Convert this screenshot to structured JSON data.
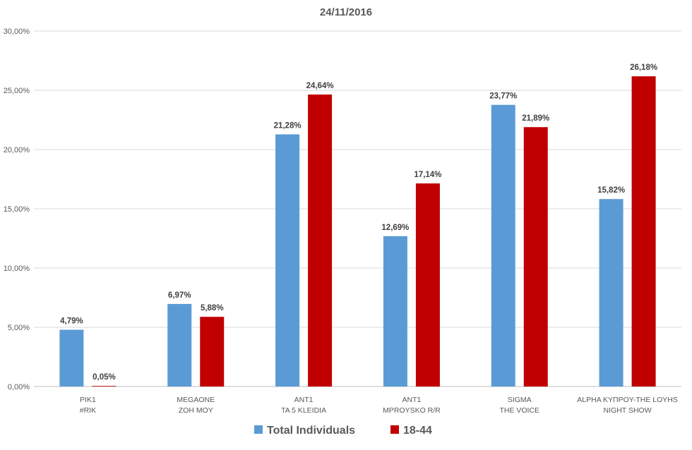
{
  "chart_data": {
    "type": "bar",
    "title": "24/11/2016",
    "xlabel": "",
    "ylabel": "",
    "ylim": [
      0,
      30
    ],
    "y_tick_labels": [
      "0,00%",
      "5,00%",
      "10,00%",
      "15,00%",
      "20,00%",
      "25,00%",
      "30,00%"
    ],
    "grid": true,
    "legend_position": "bottom",
    "categories": [
      [
        "PIK1",
        "#RIK"
      ],
      [
        "MEGAONE",
        "ZOH MOY"
      ],
      [
        "ANT1",
        "TA 5 KLEIDIA"
      ],
      [
        "ANT1",
        "MPROYSKO R/R"
      ],
      [
        "SIGMA",
        "THE VOICE"
      ],
      [
        "ALPHA KYΠPOY-THE LOYHS",
        "NIGHT SHOW"
      ]
    ],
    "series": [
      {
        "name": "Total Individuals",
        "color": "#5b9bd5",
        "values": [
          4.79,
          6.97,
          21.28,
          12.69,
          23.77,
          15.82
        ],
        "labels": [
          "4,79%",
          "6,97%",
          "21,28%",
          "12,69%",
          "23,77%",
          "15,82%"
        ]
      },
      {
        "name": "18-44",
        "color": "#c00000",
        "values": [
          0.05,
          5.88,
          24.64,
          17.14,
          21.89,
          26.18
        ],
        "labels": [
          "0,05%",
          "5,88%",
          "24,64%",
          "17,14%",
          "21,89%",
          "26,18%"
        ]
      }
    ]
  }
}
